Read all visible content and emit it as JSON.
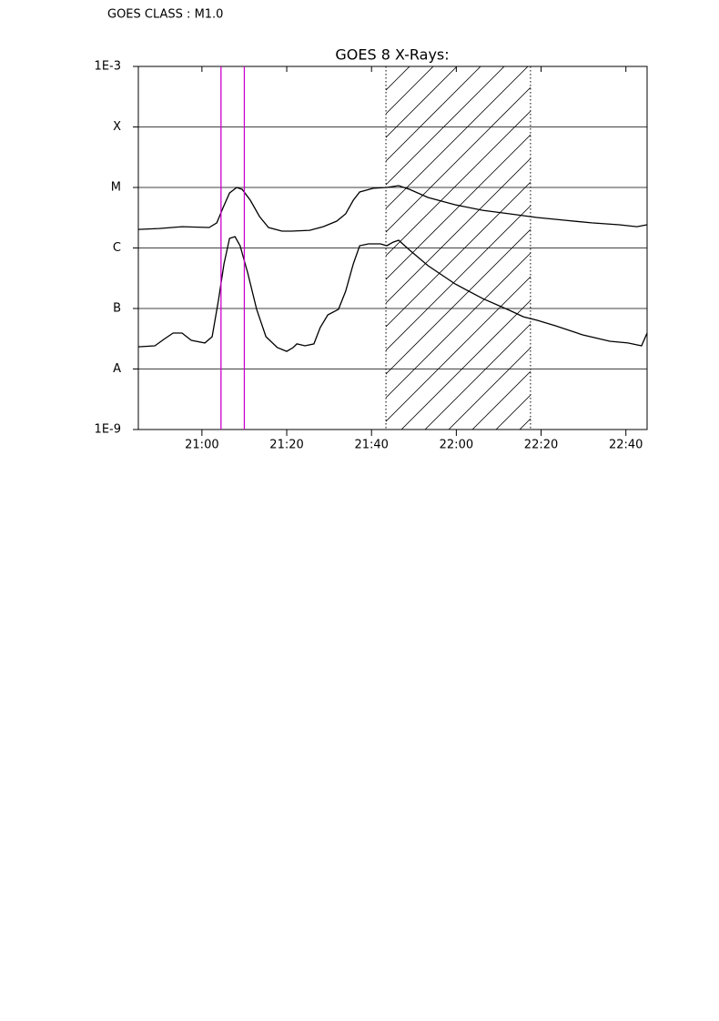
{
  "header": "GOES CLASS : M1.0",
  "chart_data": {
    "type": "line",
    "title": "GOES 8 X-Rays:",
    "log_y": true,
    "grid": true,
    "xlim": [
      1245,
      1365
    ],
    "xticks": [
      {
        "value": 1260,
        "label": "21:00"
      },
      {
        "value": 1280,
        "label": "21:20"
      },
      {
        "value": 1300,
        "label": "21:40"
      },
      {
        "value": 1320,
        "label": "22:00"
      },
      {
        "value": 1340,
        "label": "22:20"
      },
      {
        "value": 1360,
        "label": "22:40"
      }
    ],
    "ylim": [
      1e-09,
      0.001
    ],
    "yticks": [
      {
        "value": 1e-09,
        "label": "1E-9"
      },
      {
        "value": 1e-08,
        "label": "A"
      },
      {
        "value": 1e-07,
        "label": "B"
      },
      {
        "value": 1e-06,
        "label": "C"
      },
      {
        "value": 1e-05,
        "label": "M"
      },
      {
        "value": 0.0001,
        "label": "X"
      },
      {
        "value": 0.001,
        "label": "1E-3"
      }
    ],
    "series": [
      {
        "color": "#000000",
        "x": [
          1245,
          1249.9,
          1255.3,
          1261.7,
          1263.5,
          1265,
          1266.5,
          1268.2,
          1269.5,
          1271.4,
          1273.6,
          1275.7,
          1278.9,
          1281.1,
          1285.4,
          1288.6,
          1291.8,
          1293.9,
          1295.7,
          1297.2,
          1300.4,
          1303.6,
          1306.4,
          1309,
          1313.3,
          1319.7,
          1326.2,
          1332.6,
          1339,
          1345.5,
          1351.9,
          1358.4,
          1362.6,
          1365
        ],
        "values": [
          2.03e-06,
          2.1e-06,
          2.25e-06,
          2.18e-06,
          2.6e-06,
          4.67e-06,
          8.1e-06,
          1e-05,
          9.3e-06,
          6.15e-06,
          3.3e-06,
          2.18e-06,
          1.9e-06,
          1.9e-06,
          1.96e-06,
          2.25e-06,
          2.78e-06,
          3.66e-06,
          6.15e-06,
          8.4e-06,
          9.7e-06,
          1e-05,
          1.07e-05,
          9.3e-06,
          6.84e-06,
          5.18e-06,
          4.2e-06,
          3.66e-06,
          3.19e-06,
          2.88e-06,
          2.6e-06,
          2.42e-06,
          2.25e-06,
          2.42e-06
        ]
      },
      {
        "color": "#000000",
        "x": [
          1245,
          1248.9,
          1251,
          1253.2,
          1255.3,
          1257.5,
          1260.7,
          1262.4,
          1263.9,
          1265.2,
          1266.5,
          1267.8,
          1269,
          1270.8,
          1272.9,
          1275.1,
          1277.8,
          1280,
          1281.5,
          1282.4,
          1284.3,
          1286.4,
          1287.9,
          1289.7,
          1292.2,
          1293.9,
          1295.7,
          1297.2,
          1299.3,
          1302.1,
          1303.6,
          1305.1,
          1306.4,
          1309,
          1313.3,
          1319.7,
          1326.2,
          1332.6,
          1335.8,
          1339,
          1343.3,
          1349.8,
          1356.2,
          1360.5,
          1363.7,
          1365
        ],
        "values": [
          2.33e-08,
          2.42e-08,
          3.08e-08,
          3.93e-08,
          3.93e-08,
          2.98e-08,
          2.69e-08,
          3.42e-08,
          1.36e-07,
          5.46e-07,
          1.44e-06,
          1.54e-06,
          1.09e-06,
          3.86e-07,
          9.7e-08,
          3.42e-08,
          2.26e-08,
          1.96e-08,
          2.26e-08,
          2.6e-08,
          2.42e-08,
          2.6e-08,
          4.83e-08,
          7.85e-08,
          9.7e-08,
          1.93e-07,
          5.46e-07,
          1.09e-06,
          1.17e-06,
          1.17e-06,
          1.09e-06,
          1.25e-06,
          1.34e-06,
          9.2e-07,
          5.1e-07,
          2.55e-07,
          1.46e-07,
          9.3e-08,
          7.3e-08,
          6.4e-08,
          5.2e-08,
          3.66e-08,
          2.88e-08,
          2.69e-08,
          2.42e-08,
          3.93e-08
        ]
      }
    ],
    "marker_lines": {
      "color": "#cc00cc",
      "x": [
        1264.5,
        1270
      ]
    },
    "shaded_region": [
      1303.4,
      1337.5
    ]
  }
}
